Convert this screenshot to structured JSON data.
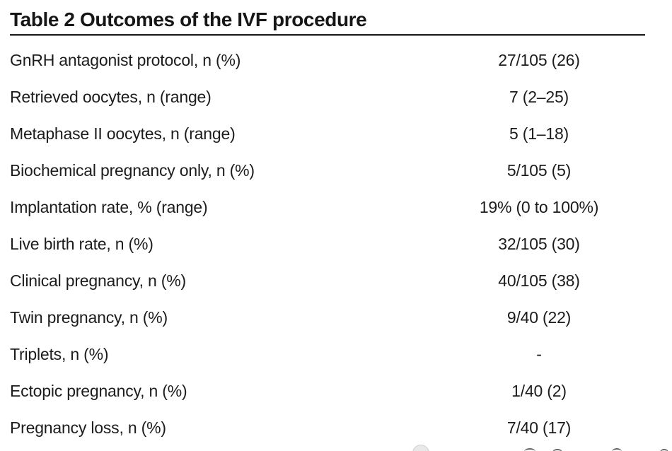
{
  "table": {
    "title": "Table 2 Outcomes of the IVF procedure",
    "rows": [
      {
        "label": "GnRH antagonist protocol, n (%)",
        "value": "27/105 (26)"
      },
      {
        "label": "Retrieved oocytes, n (range)",
        "value": "7 (2–25)"
      },
      {
        "label": "Metaphase II oocytes, n (range)",
        "value": "5 (1–18)"
      },
      {
        "label": "Biochemical pregnancy only, n (%)",
        "value": "5/105 (5)"
      },
      {
        "label": "Implantation rate, % (range)",
        "value": "19% (0 to 100%)"
      },
      {
        "label": "Live birth rate, n (%)",
        "value": "32/105 (30)"
      },
      {
        "label": "Clinical pregnancy, n (%)",
        "value": "40/105 (38)"
      },
      {
        "label": "Twin pregnancy, n (%)",
        "value": "9/40 (22)"
      },
      {
        "label": "Triplets, n (%)",
        "value": "-"
      },
      {
        "label": "Ectopic pregnancy, n (%)",
        "value": "1/40 (2)"
      },
      {
        "label": "Pregnancy loss, n (%)",
        "value": "7/40 (17)"
      }
    ]
  },
  "colors": {
    "background": "#ffffff",
    "text": "#1c1c1c",
    "title": "#161616",
    "rule": "#2e2e2e"
  }
}
